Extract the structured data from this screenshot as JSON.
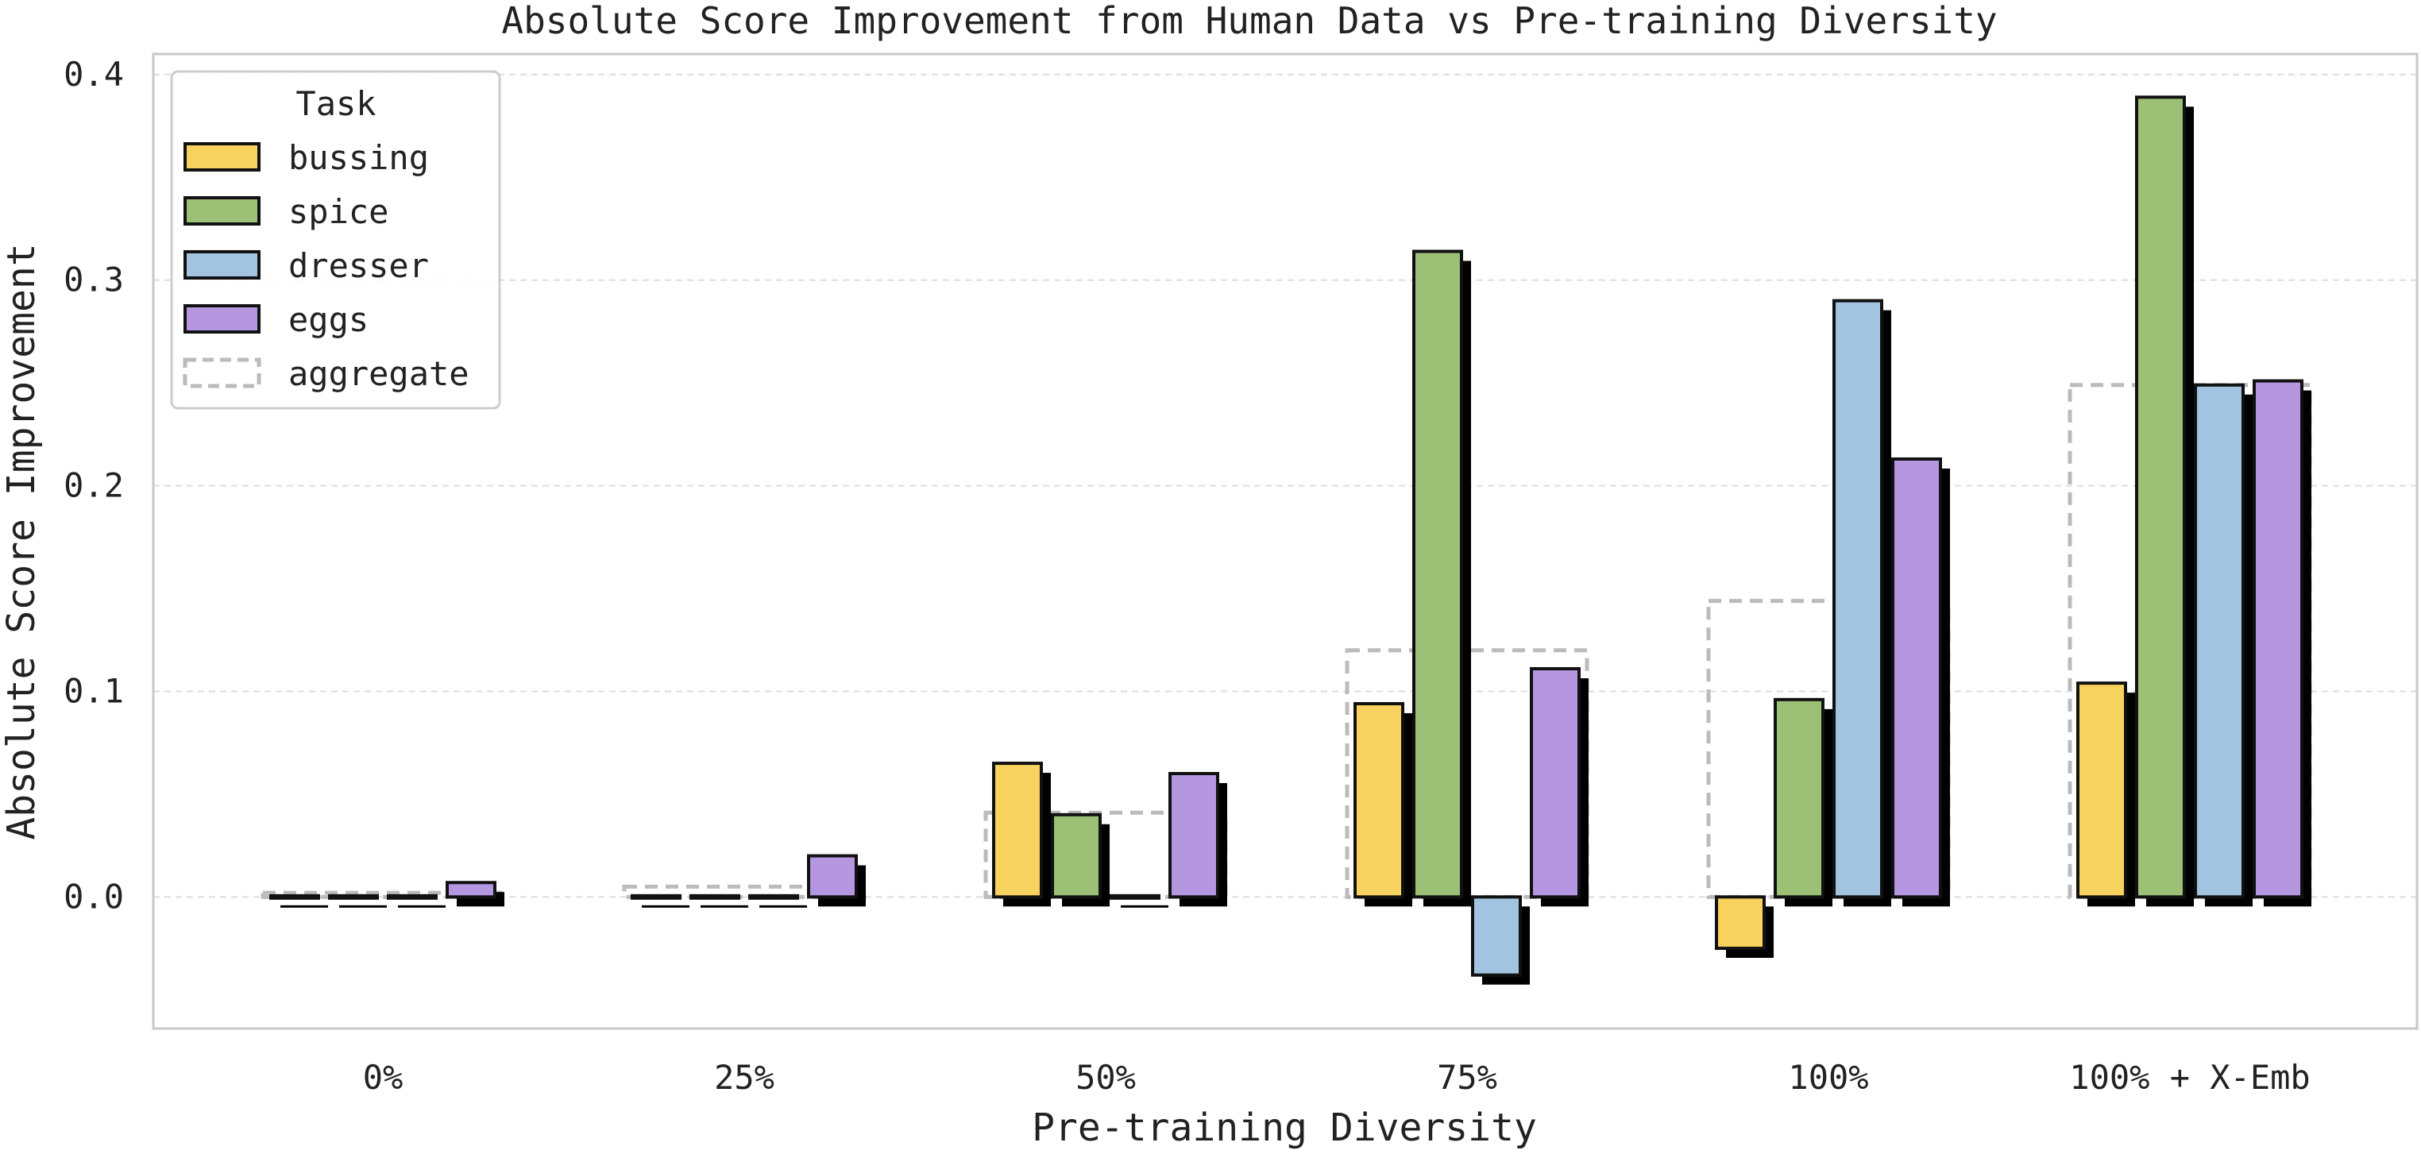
{
  "chart_data": {
    "type": "bar",
    "title": "Absolute Score Improvement from Human Data vs Pre-training Diversity",
    "xlabel": "Pre-training Diversity",
    "ylabel": "Absolute Score Improvement",
    "categories": [
      "0%",
      "25%",
      "50%",
      "75%",
      "100%",
      "100% + X-Emb"
    ],
    "ylim": [
      -0.064,
      0.41
    ],
    "yticks": [
      "0.0",
      "0.1",
      "0.2",
      "0.3",
      "0.4"
    ],
    "ytick_values": [
      0.0,
      0.1,
      0.2,
      0.3,
      0.4
    ],
    "grid": "horizontal dashed",
    "legend": {
      "title": "Task",
      "placement": "top-left"
    },
    "series": [
      {
        "name": "bussing",
        "color": "#f8d25e",
        "values": [
          0.0,
          0.0,
          0.065,
          0.094,
          -0.025,
          0.104
        ]
      },
      {
        "name": "spice",
        "color": "#9cc075",
        "values": [
          0.0,
          0.0,
          0.04,
          0.314,
          0.096,
          0.389
        ]
      },
      {
        "name": "dresser",
        "color": "#a2c4e0",
        "values": [
          0.0,
          0.0,
          0.0,
          -0.038,
          0.29,
          0.249
        ]
      },
      {
        "name": "eggs",
        "color": "#b497e0",
        "values": [
          0.007,
          0.02,
          0.06,
          0.111,
          0.213,
          0.251
        ]
      }
    ],
    "aggregate": {
      "name": "aggregate",
      "style": "dashed outline",
      "color": "#bbbbbb",
      "values": [
        0.002,
        0.005,
        0.041,
        0.12,
        0.144,
        0.249
      ]
    }
  }
}
